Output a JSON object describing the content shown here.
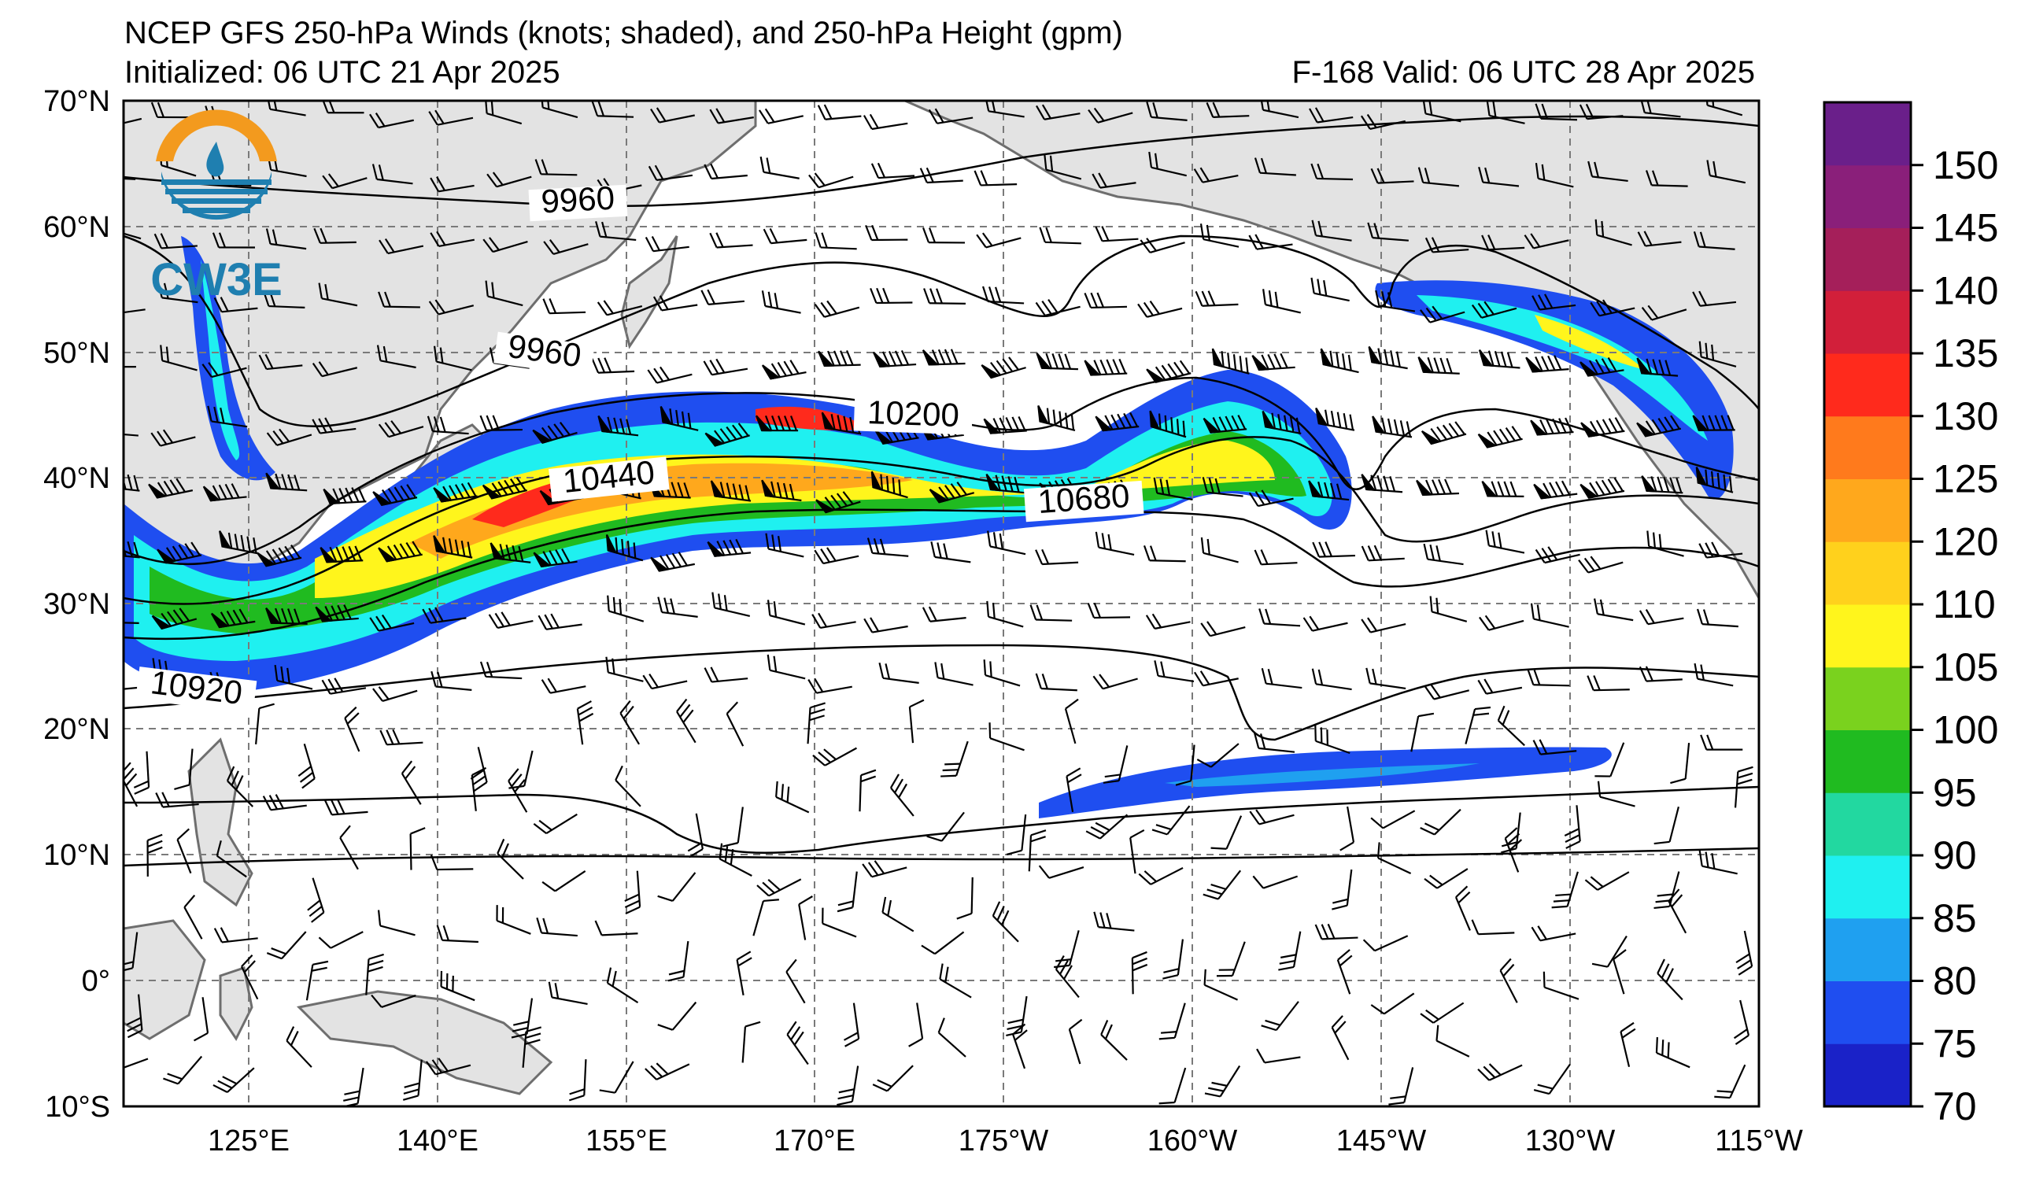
{
  "header": {
    "title": "NCEP GFS 250-hPa Winds (knots; shaded), and 250-hPa Height (gpm)",
    "initialized": "Initialized: 06 UTC 21 Apr 2025",
    "valid": "F-168  Valid: 06 UTC 28 Apr 2025"
  },
  "logo": {
    "text": "CW3E",
    "colors": [
      "#f39a1e",
      "#1f7fb0"
    ]
  },
  "map": {
    "lat_labels": [
      "70°N",
      "60°N",
      "50°N",
      "40°N",
      "30°N",
      "20°N",
      "10°N",
      "0°",
      "10°S"
    ],
    "lon_labels": [
      "125°E",
      "140°E",
      "155°E",
      "170°E",
      "175°W",
      "160°W",
      "145°W",
      "130°W",
      "115°W"
    ],
    "contour_labels": [
      "9960",
      "9960",
      "10200",
      "10440",
      "10680",
      "10920"
    ],
    "land_color": "#e3e3e3",
    "coast_color": "#6e6e6e",
    "grid_color": "#7a7a7a"
  },
  "colorbar": {
    "ticks": [
      "150",
      "145",
      "140",
      "135",
      "130",
      "125",
      "120",
      "110",
      "105",
      "100",
      "95",
      "90",
      "85",
      "80",
      "75",
      "70"
    ],
    "colors": [
      "#1a22c8",
      "#1f4ef0",
      "#1fa0f0",
      "#1ff0f0",
      "#22d8a0",
      "#20bb20",
      "#7ad21e",
      "#fff51c",
      "#ffd11c",
      "#ffa81c",
      "#ff7a1c",
      "#ff2a1c",
      "#d21f3a",
      "#a51f5a",
      "#8a1f7a",
      "#6a1f8a"
    ]
  }
}
